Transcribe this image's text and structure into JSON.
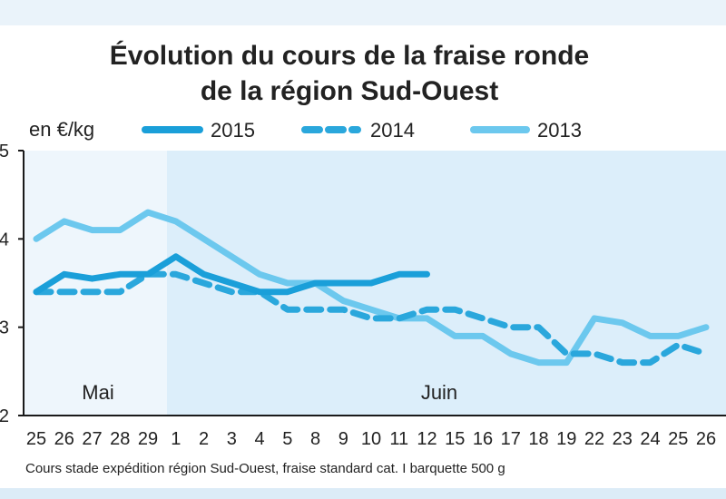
{
  "chart_data": {
    "type": "line",
    "title_lines": [
      "Évolution du cours de la fraise ronde",
      "de la région Sud-Ouest"
    ],
    "ylabel": "en €/kg",
    "ylim": [
      2,
      5
    ],
    "yticks": [
      "2",
      "3",
      "4",
      "5"
    ],
    "categories": [
      "25",
      "26",
      "27",
      "28",
      "29",
      "1",
      "2",
      "3",
      "4",
      "5",
      "8",
      "9",
      "10",
      "11",
      "12",
      "15",
      "16",
      "17",
      "18",
      "19",
      "22",
      "23",
      "24",
      "25",
      "26"
    ],
    "months": [
      {
        "label": "Mai",
        "start_index": 0,
        "end_index": 4
      },
      {
        "label": "Juin",
        "start_index": 5,
        "end_index": 24
      }
    ],
    "series": [
      {
        "name": "2015",
        "style": "solid",
        "color": "#1a9fd9",
        "values": [
          3.4,
          3.6,
          3.55,
          3.6,
          3.6,
          3.8,
          3.6,
          3.5,
          3.4,
          3.4,
          3.5,
          3.5,
          3.5,
          3.6,
          3.6,
          null,
          null,
          null,
          null,
          null,
          null,
          null,
          null,
          null,
          null
        ]
      },
      {
        "name": "2014",
        "style": "dashed",
        "color": "#2aa7dc",
        "values": [
          3.4,
          3.4,
          3.4,
          3.4,
          3.6,
          3.6,
          3.5,
          3.4,
          3.4,
          3.2,
          3.2,
          3.2,
          3.1,
          3.1,
          3.2,
          3.2,
          3.1,
          3.0,
          3.0,
          2.7,
          2.7,
          2.6,
          2.6,
          2.8,
          2.7
        ]
      },
      {
        "name": "2013",
        "style": "solid-light",
        "color": "#6cc8ee",
        "values": [
          4.0,
          4.2,
          4.1,
          4.1,
          4.3,
          4.2,
          4.0,
          3.8,
          3.6,
          3.5,
          3.5,
          3.3,
          3.2,
          3.1,
          3.1,
          2.9,
          2.9,
          2.7,
          2.6,
          2.6,
          3.1,
          3.05,
          2.9,
          2.9,
          3.0
        ]
      }
    ],
    "grid": false,
    "legend_position": "top",
    "source": "Cours stade expédition région Sud-Ouest, fraise standard cat. I barquette 500 g"
  }
}
